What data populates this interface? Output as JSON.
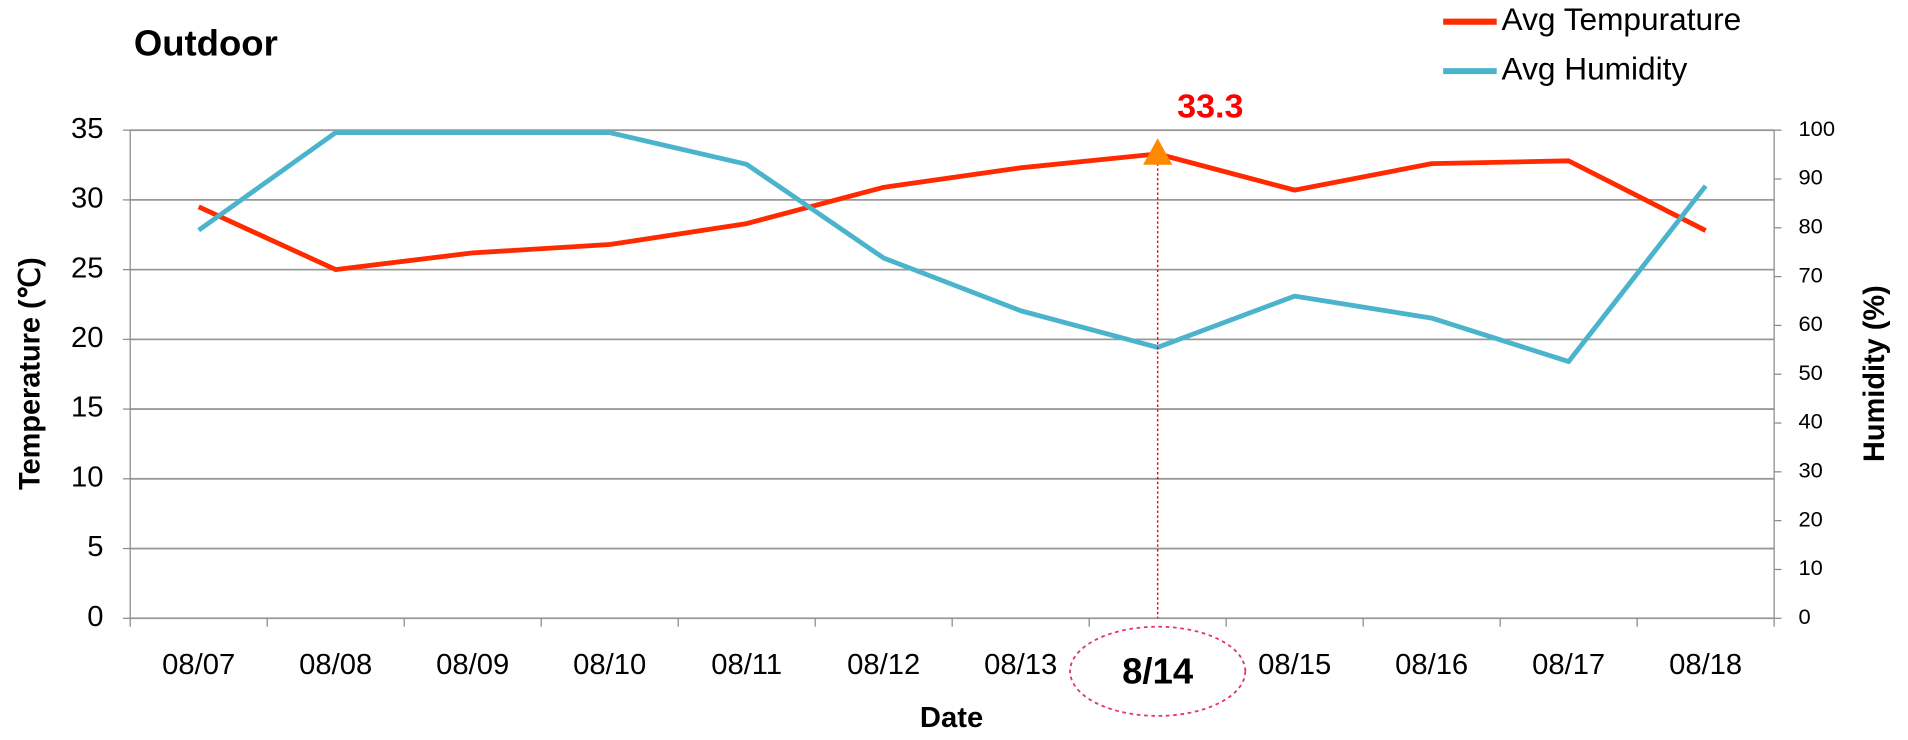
{
  "chart_data": {
    "type": "line",
    "title": "Outdoor",
    "xlabel": "Date",
    "ylabel": "Temperature (℃)",
    "y2label": "Humidity (%)",
    "categories": [
      "08/07",
      "08/08",
      "08/09",
      "08/10",
      "08/11",
      "08/12",
      "08/13",
      null,
      "08/15",
      "08/16",
      "08/17",
      "08/18"
    ],
    "series": [
      {
        "name": "Avg Tempurature",
        "color": "#ff2a00",
        "values": [
          29.5,
          25.0,
          26.2,
          26.8,
          28.3,
          30.9,
          32.3,
          33.3,
          30.7,
          32.6,
          32.8,
          27.8
        ]
      },
      {
        "name": "Avg Humidity",
        "color": "#4bb4cc",
        "axis": "y2",
        "values": [
          79.5,
          99.5,
          99.5,
          99.5,
          93,
          73.8,
          63,
          55.5,
          66,
          61.5,
          52.6,
          88.6
        ]
      }
    ],
    "ylim": [
      0,
      35
    ],
    "yticks": [
      0,
      5,
      10,
      15,
      20,
      25,
      30,
      35
    ],
    "y2lim": [
      0,
      100
    ],
    "y2ticks": [
      0,
      10,
      20,
      30,
      40,
      50,
      60,
      70,
      80,
      90,
      100
    ],
    "grid": true,
    "legend": "top-right",
    "highlight": {
      "label": "8/14",
      "value_label": "33.3",
      "color": "#ff0000",
      "marker_color": "#ff8a00"
    }
  }
}
